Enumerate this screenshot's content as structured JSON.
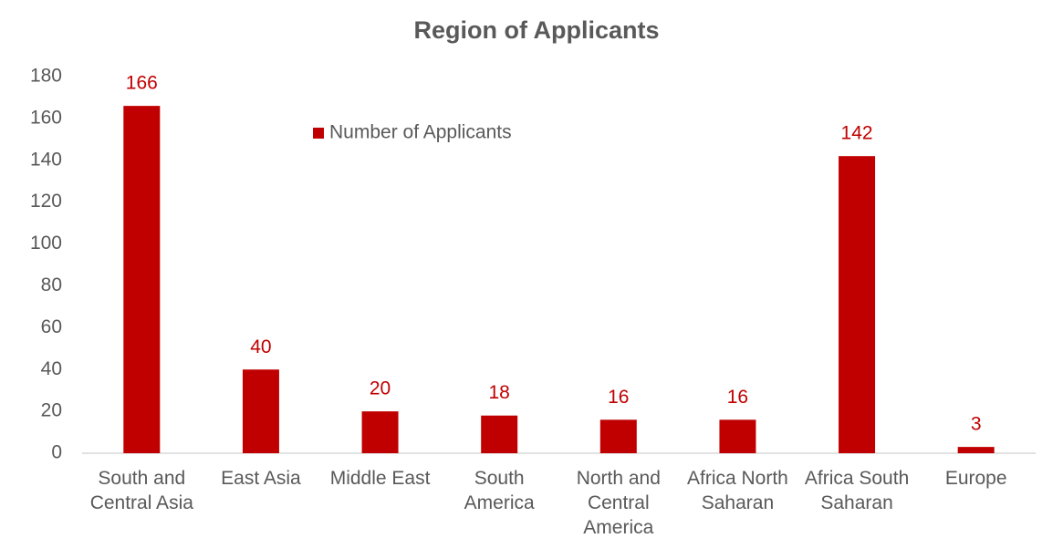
{
  "chart_data": {
    "type": "bar",
    "title": "Region of Applicants",
    "categories": [
      "South and Central Asia",
      "East Asia",
      "Middle East",
      "South America",
      "North and Central America",
      "Africa North Saharan",
      "Africa South Saharan",
      "Europe"
    ],
    "series": [
      {
        "name": "Number of Applicants",
        "color": "#c00000",
        "values": [
          166,
          40,
          20,
          18,
          16,
          16,
          142,
          3
        ]
      }
    ],
    "ylim": [
      0,
      180
    ],
    "yticks": [
      0,
      20,
      40,
      60,
      80,
      100,
      120,
      140,
      160,
      180
    ],
    "grid": false,
    "legend": "top",
    "data_labels": true
  }
}
